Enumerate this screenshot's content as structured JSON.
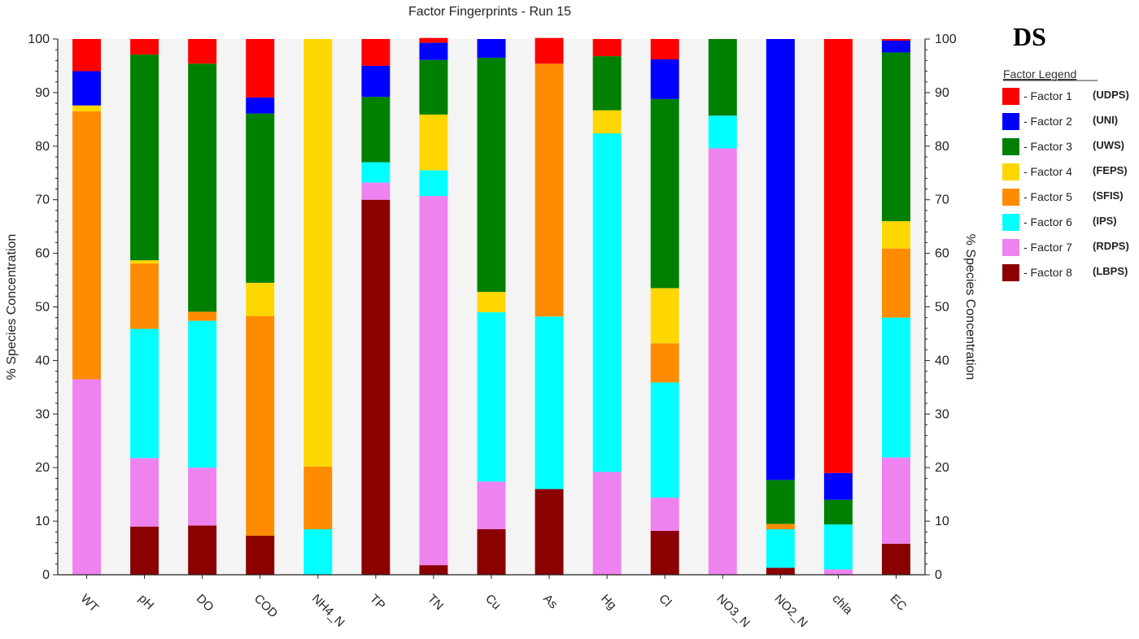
{
  "corner_label": "DS",
  "legend": {
    "title": "Factor Legend",
    "items": [
      {
        "label": "- Factor 1",
        "abbr": "(UDPS)",
        "color": "#ff0000"
      },
      {
        "label": "- Factor 2",
        "abbr": "(UNI)",
        "color": "#0000ff"
      },
      {
        "label": "- Factor 3",
        "abbr": "(UWS)",
        "color": "#008000"
      },
      {
        "label": "- Factor 4",
        "abbr": "(FEPS)",
        "color": "#ffd700"
      },
      {
        "label": "- Factor 5",
        "abbr": "(SFIS)",
        "color": "#ff8c00"
      },
      {
        "label": "- Factor 6",
        "abbr": "(IPS)",
        "color": "#00ffff"
      },
      {
        "label": "- Factor 7",
        "abbr": "(RDPS)",
        "color": "#ee82ee"
      },
      {
        "label": "- Factor 8",
        "abbr": "(LBPS)",
        "color": "#8b0000"
      }
    ]
  },
  "chart_data": {
    "type": "bar",
    "stacked": true,
    "title": "Factor Fingerprints - Run 15",
    "ylabel": "% Species Concentration",
    "ylabel_right": "% Species Concentration",
    "xlabel": "",
    "ylim": [
      0,
      100
    ],
    "yticks": [
      0,
      10,
      20,
      30,
      40,
      50,
      60,
      70,
      80,
      90,
      100
    ],
    "grid": false,
    "legend_position": "right",
    "categories": [
      "WT",
      "pH",
      "DO",
      "COD",
      "NH4_N",
      "TP",
      "TN",
      "Cu",
      "As",
      "Hg",
      "Cl",
      "NO3_N",
      "NO2_N",
      "chla",
      "EC"
    ],
    "series": [
      {
        "name": "Factor 8",
        "color": "#8b0000",
        "values": [
          0,
          9,
          9.2,
          7.3,
          0,
          70,
          1.8,
          8.5,
          16,
          0,
          8.2,
          0,
          1.3,
          0,
          5.8
        ]
      },
      {
        "name": "Factor 7",
        "color": "#ee82ee",
        "values": [
          36.5,
          12.8,
          10.8,
          0,
          0,
          3.2,
          68.9,
          8.9,
          0,
          19.2,
          6.2,
          79.6,
          0,
          1,
          16.1
        ]
      },
      {
        "name": "Factor 6",
        "color": "#00ffff",
        "values": [
          0,
          24.1,
          27.4,
          0,
          8.5,
          3.8,
          4.8,
          31.6,
          32.2,
          63.2,
          21.5,
          6.1,
          7.2,
          8.4,
          26.1
        ]
      },
      {
        "name": "Factor 5",
        "color": "#ff8c00",
        "values": [
          50,
          12.2,
          1.7,
          41,
          11.7,
          0,
          0,
          0,
          47.2,
          0,
          7.3,
          0,
          1,
          0,
          12.9
        ]
      },
      {
        "name": "Factor 4",
        "color": "#ffd700",
        "values": [
          1.1,
          0.6,
          0,
          6.2,
          79.8,
          0,
          10.4,
          3.8,
          0,
          4.3,
          10.3,
          0,
          0,
          0,
          5.1
        ]
      },
      {
        "name": "Factor 3",
        "color": "#008000",
        "values": [
          0,
          38.4,
          46.3,
          31.6,
          0,
          12.2,
          10.2,
          43.7,
          0,
          10.1,
          35.3,
          14.3,
          8.2,
          4.6,
          31.5
        ]
      },
      {
        "name": "Factor 2",
        "color": "#0000ff",
        "values": [
          6.4,
          0,
          0,
          3,
          0,
          5.8,
          3.2,
          3.5,
          0,
          0,
          7.4,
          0,
          82.3,
          5,
          2.2
        ]
      },
      {
        "name": "Factor 1",
        "color": "#ff0000",
        "values": [
          6,
          2.9,
          4.6,
          10.9,
          0,
          5,
          0.9,
          0,
          4.8,
          3.2,
          3.8,
          0,
          0,
          81,
          0.3
        ]
      }
    ]
  }
}
